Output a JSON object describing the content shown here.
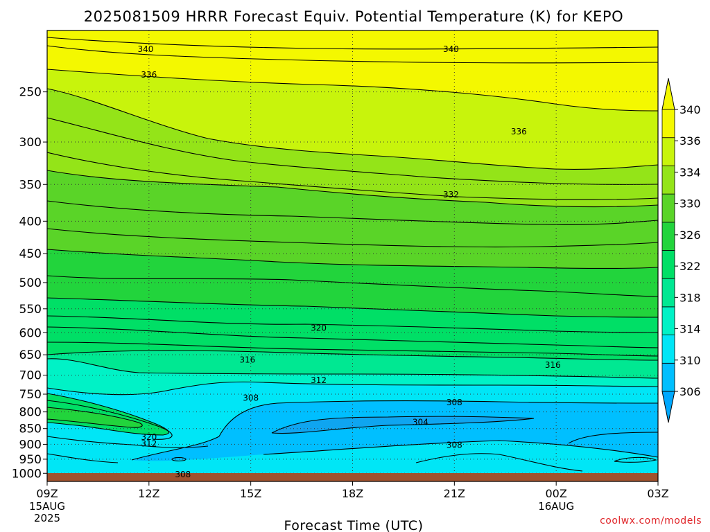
{
  "chart_data": {
    "type": "contour",
    "title": "2025081509 HRRR Forecast Equiv. Potential Temperature (K) for KEPO",
    "xlabel": "Forecast Time (UTC)",
    "ylabel": "",
    "x_ticks": [
      {
        "hour": 0,
        "label": "09Z",
        "sub": [
          "15AUG",
          "2025"
        ]
      },
      {
        "hour": 3,
        "label": "12Z",
        "sub": []
      },
      {
        "hour": 6,
        "label": "15Z",
        "sub": []
      },
      {
        "hour": 9,
        "label": "18Z",
        "sub": []
      },
      {
        "hour": 12,
        "label": "21Z",
        "sub": []
      },
      {
        "hour": 15,
        "label": "00Z",
        "sub": [
          "16AUG"
        ]
      },
      {
        "hour": 18,
        "label": "03Z",
        "sub": []
      }
    ],
    "xlim": [
      0,
      18
    ],
    "y_scale": "log",
    "ylim": [
      1030,
      200
    ],
    "y_ticks": [
      250,
      300,
      350,
      400,
      450,
      500,
      550,
      600,
      650,
      700,
      750,
      800,
      850,
      900,
      950,
      1000
    ],
    "grid": true,
    "colorbar": {
      "levels": [
        306,
        310,
        314,
        318,
        322,
        326,
        330,
        334,
        336,
        340
      ],
      "labels": [
        "306",
        "310",
        "314",
        "318",
        "322",
        "326",
        "330",
        "334",
        "336",
        "340"
      ],
      "colors": [
        "#00bfff",
        "#00e6f6",
        "#00f2c6",
        "#00e892",
        "#00df66",
        "#22d43c",
        "#5ad428",
        "#94e418",
        "#c8f40c",
        "#f4f800"
      ],
      "placement": "right"
    },
    "contour_labels": [
      {
        "text": "340",
        "hour": 2.9,
        "p": 214
      },
      {
        "text": "340",
        "hour": 11.9,
        "p": 214
      },
      {
        "text": "336",
        "hour": 3.0,
        "p": 235
      },
      {
        "text": "336",
        "hour": 13.9,
        "p": 289
      },
      {
        "text": "332",
        "hour": 11.9,
        "p": 363
      },
      {
        "text": "320",
        "hour": 8.0,
        "p": 590
      },
      {
        "text": "316",
        "hour": 5.9,
        "p": 662
      },
      {
        "text": "316",
        "hour": 14.9,
        "p": 675
      },
      {
        "text": "312",
        "hour": 8.0,
        "p": 713
      },
      {
        "text": "308",
        "hour": 6.0,
        "p": 760
      },
      {
        "text": "308",
        "hour": 12.0,
        "p": 773
      },
      {
        "text": "304",
        "hour": 11.0,
        "p": 830
      },
      {
        "text": "320",
        "hour": 3.0,
        "p": 877
      },
      {
        "text": "312",
        "hour": 3.0,
        "p": 898
      },
      {
        "text": "308",
        "hour": 12.0,
        "p": 903
      },
      {
        "text": "308",
        "hour": 4.0,
        "p": 1005
      }
    ],
    "terrain_color": "#a0522d"
  },
  "credit": "coolwx.com/models"
}
